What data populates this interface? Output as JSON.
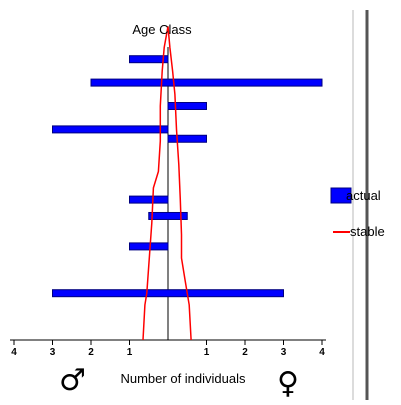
{
  "chart_data": {
    "type": "bar",
    "title": "Age Class",
    "xlabel": "Number of individuals",
    "ylabel": "",
    "xlim": [
      -4,
      4
    ],
    "x_ticks": [
      -4,
      -3,
      -2,
      -1,
      1,
      2,
      3,
      4
    ],
    "x_tick_labels": [
      "4",
      "3",
      "2",
      "1",
      "1",
      "2",
      "3",
      "4"
    ],
    "age_classes": 13,
    "series": [
      {
        "name": "actual",
        "color": "#0000ff",
        "bars": [
          {
            "age_class": 12,
            "start": -1,
            "end": 0
          },
          {
            "age_class": 11,
            "start": -2,
            "end": 4
          },
          {
            "age_class": 10,
            "start": 0,
            "end": 1
          },
          {
            "age_class": 9,
            "start": -3,
            "end": 0
          },
          {
            "age_class": 8.6,
            "start": 0,
            "end": 1
          },
          {
            "age_class": 6,
            "start": -1,
            "end": 0
          },
          {
            "age_class": 5.3,
            "start": -0.5,
            "end": 0.5
          },
          {
            "age_class": 4,
            "start": -1,
            "end": 0
          },
          {
            "age_class": 2,
            "start": -3,
            "end": 3
          }
        ]
      },
      {
        "name": "stable",
        "color": "#ff0000",
        "male": [
          [
            0,
            -0.65
          ],
          [
            1.5,
            -0.6
          ],
          [
            2,
            -0.55
          ],
          [
            3.2,
            -0.5
          ],
          [
            5,
            -0.42
          ],
          [
            6.5,
            -0.38
          ],
          [
            7.2,
            -0.25
          ],
          [
            8.5,
            -0.2
          ],
          [
            10,
            -0.2
          ],
          [
            11.5,
            -0.15
          ],
          [
            12.5,
            -0.1
          ],
          [
            13.4,
            0
          ]
        ],
        "female": [
          [
            0,
            0.6
          ],
          [
            1.5,
            0.55
          ],
          [
            2.5,
            0.45
          ],
          [
            3.5,
            0.35
          ],
          [
            4.5,
            0.35
          ],
          [
            6,
            0.32
          ],
          [
            7.5,
            0.28
          ],
          [
            9,
            0.22
          ],
          [
            10.5,
            0.18
          ],
          [
            11.5,
            0.12
          ],
          [
            12.5,
            0.05
          ],
          [
            13.4,
            0
          ]
        ]
      }
    ],
    "legend": {
      "position": "right",
      "entries": [
        "actual",
        "stable"
      ]
    },
    "grid": false
  },
  "symbols": {
    "male": "♂",
    "female": "♀"
  }
}
